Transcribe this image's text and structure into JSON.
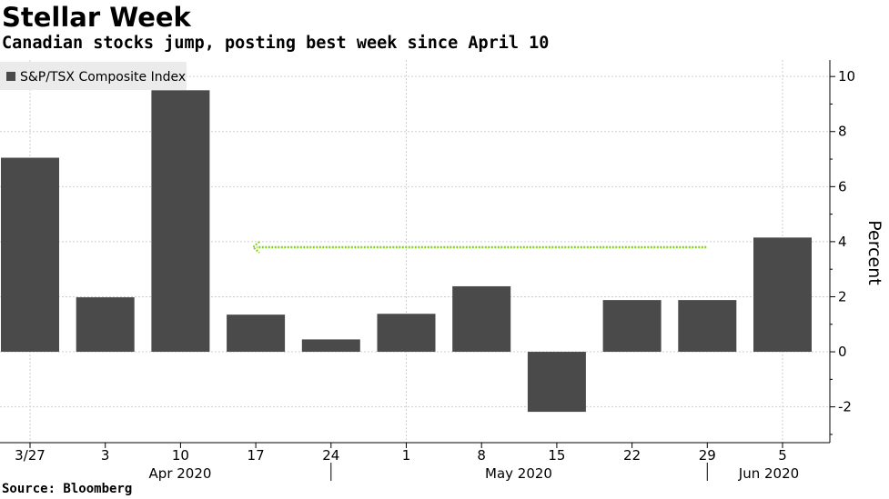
{
  "chart_data": {
    "type": "bar",
    "title": "Stellar Week",
    "subtitle": "Canadian stocks jump, posting best week since April 10",
    "source": "Source: Bloomberg",
    "legend": [
      "S&P/TSX Composite Index"
    ],
    "legend_position": "top-left",
    "categories": [
      "3/27",
      "3",
      "10",
      "17",
      "24",
      "1",
      "8",
      "15",
      "22",
      "29",
      "5"
    ],
    "months": [
      "Apr 2020",
      "May 2020",
      "Jun 2020"
    ],
    "series": [
      {
        "name": "S&P/TSX Composite Index",
        "values": [
          7.05,
          1.98,
          9.5,
          1.35,
          0.45,
          1.38,
          2.38,
          -2.18,
          1.88,
          1.88,
          4.15
        ]
      }
    ],
    "ylabel": "Percent",
    "ylim": [
      -3.3,
      10.6
    ],
    "yticks": [
      -2,
      0,
      2,
      4,
      6,
      8,
      10
    ],
    "grid": true,
    "annotation": {
      "type": "arrow",
      "y": 3.8,
      "from_category": "29",
      "to_category": "17"
    },
    "colors": {
      "bar": "#4a4a4a",
      "annotation": "#84d21c",
      "grid": "#cfcfcf",
      "legend_bg": "#ebebeb"
    }
  }
}
